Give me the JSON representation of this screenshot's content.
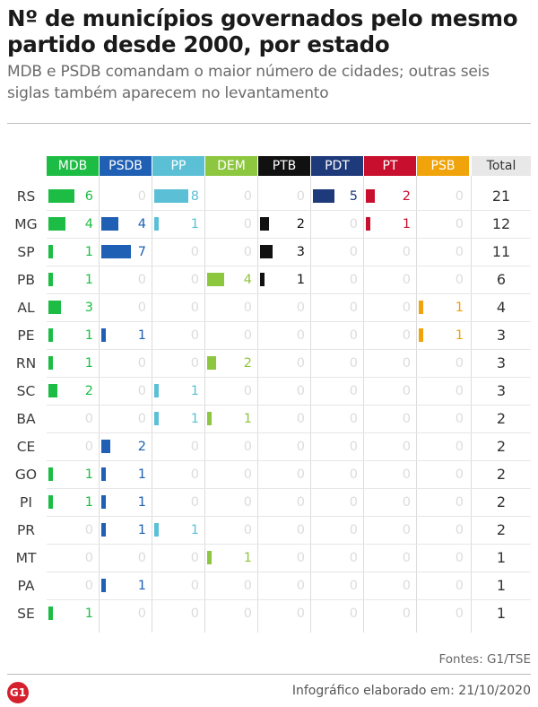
{
  "header": {
    "title": "Nº de municípios governados pelo mesmo partido desde 2000, por estado",
    "subtitle": "MDB e PSDB comandam o maior número de cidades; outras seis siglas também aparecem no levantamento"
  },
  "footer": {
    "sources": "Fontes: G1/TSE",
    "logo": "G1",
    "credit": "Infográfico elaborado em: 21/10/2020"
  },
  "colors": {
    "MDB": "#1dbd45",
    "PSDB": "#1f5fb4",
    "PP": "#5bc0d6",
    "DEM": "#8dc63f",
    "PTB": "#111111",
    "PDT": "#1f3a7a",
    "PT": "#c8102e",
    "PSB": "#f0a30a",
    "Total": "#e8e8e8"
  },
  "chart_data": {
    "type": "table",
    "columns": [
      "MDB",
      "PSDB",
      "PP",
      "DEM",
      "PTB",
      "PDT",
      "PT",
      "PSB"
    ],
    "total_label": "Total",
    "rows": [
      {
        "state": "RS",
        "values": [
          6,
          0,
          8,
          0,
          0,
          5,
          2,
          0
        ],
        "total": 21
      },
      {
        "state": "MG",
        "values": [
          4,
          4,
          1,
          0,
          2,
          0,
          1,
          0
        ],
        "total": 12
      },
      {
        "state": "SP",
        "values": [
          1,
          7,
          0,
          0,
          3,
          0,
          0,
          0
        ],
        "total": 11
      },
      {
        "state": "PB",
        "values": [
          1,
          0,
          0,
          4,
          1,
          0,
          0,
          0
        ],
        "total": 6
      },
      {
        "state": "AL",
        "values": [
          3,
          0,
          0,
          0,
          0,
          0,
          0,
          1
        ],
        "total": 4
      },
      {
        "state": "PE",
        "values": [
          1,
          1,
          0,
          0,
          0,
          0,
          0,
          1
        ],
        "total": 3
      },
      {
        "state": "RN",
        "values": [
          1,
          0,
          0,
          2,
          0,
          0,
          0,
          0
        ],
        "total": 3
      },
      {
        "state": "SC",
        "values": [
          2,
          0,
          1,
          0,
          0,
          0,
          0,
          0
        ],
        "total": 3
      },
      {
        "state": "BA",
        "values": [
          0,
          0,
          1,
          1,
          0,
          0,
          0,
          0
        ],
        "total": 2
      },
      {
        "state": "CE",
        "values": [
          0,
          2,
          0,
          0,
          0,
          0,
          0,
          0
        ],
        "total": 2
      },
      {
        "state": "GO",
        "values": [
          1,
          1,
          0,
          0,
          0,
          0,
          0,
          0
        ],
        "total": 2
      },
      {
        "state": "PI",
        "values": [
          1,
          1,
          0,
          0,
          0,
          0,
          0,
          0
        ],
        "total": 2
      },
      {
        "state": "PR",
        "values": [
          0,
          1,
          1,
          0,
          0,
          0,
          0,
          0
        ],
        "total": 2
      },
      {
        "state": "MT",
        "values": [
          0,
          0,
          0,
          1,
          0,
          0,
          0,
          0
        ],
        "total": 1
      },
      {
        "state": "PA",
        "values": [
          0,
          1,
          0,
          0,
          0,
          0,
          0,
          0
        ],
        "total": 1
      },
      {
        "state": "SE",
        "values": [
          1,
          0,
          0,
          0,
          0,
          0,
          0,
          0
        ],
        "total": 1
      }
    ]
  }
}
